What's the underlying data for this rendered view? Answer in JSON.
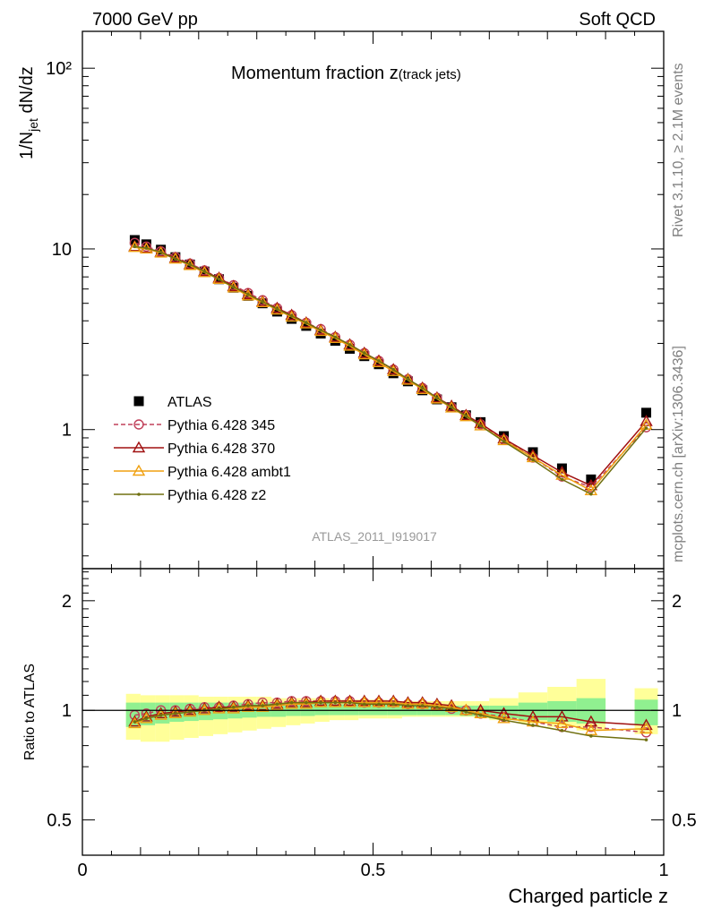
{
  "header": {
    "left": "7000 GeV pp",
    "right": "Soft QCD"
  },
  "side": {
    "rivet": "Rivet 3.1.10, ≥ 2.1M events",
    "mcplots": "mcplots.cern.ch [arXiv:1306.3436]"
  },
  "chart_data": [
    {
      "type": "scatter",
      "title": "Momentum fraction z(track jets)",
      "ylabel": "1/Njet dN/dz",
      "xlabel": "",
      "y_scale": "log",
      "xlim": [
        0,
        1
      ],
      "ylim": [
        0.17,
        160
      ],
      "y_tick_labels": [
        "1",
        "10",
        "10²"
      ],
      "watermark": "ATLAS_2011_I919017",
      "legend_position": "lower-left",
      "x": [
        0.09,
        0.11,
        0.135,
        0.16,
        0.185,
        0.21,
        0.235,
        0.26,
        0.285,
        0.31,
        0.335,
        0.36,
        0.385,
        0.41,
        0.435,
        0.46,
        0.485,
        0.51,
        0.535,
        0.56,
        0.585,
        0.61,
        0.635,
        0.66,
        0.685,
        0.725,
        0.775,
        0.825,
        0.875,
        0.97
      ],
      "series": [
        {
          "name": "ATLAS",
          "color": "#000000",
          "marker": "filled-square",
          "values": [
            11.2,
            10.6,
            9.9,
            9.0,
            8.2,
            7.5,
            6.8,
            6.1,
            5.5,
            5.0,
            4.5,
            4.1,
            3.75,
            3.4,
            3.1,
            2.8,
            2.55,
            2.3,
            2.05,
            1.85,
            1.65,
            1.47,
            1.33,
            1.2,
            1.1,
            0.92,
            0.75,
            0.61,
            0.53,
            1.24
          ]
        },
        {
          "name": "Pythia 6.428 345",
          "color": "#c0405a",
          "marker": "open-circle",
          "dashed": true,
          "values": [
            10.8,
            10.3,
            9.7,
            9.0,
            8.3,
            7.6,
            6.9,
            6.3,
            5.7,
            5.2,
            4.7,
            4.3,
            3.9,
            3.6,
            3.25,
            2.95,
            2.65,
            2.4,
            2.15,
            1.9,
            1.7,
            1.5,
            1.33,
            1.2,
            1.07,
            0.88,
            0.7,
            0.55,
            0.48,
            1.03
          ]
        },
        {
          "name": "Pythia 6.428 370",
          "color": "#a01010",
          "marker": "open-triangle",
          "values": [
            10.3,
            10.1,
            9.6,
            8.9,
            8.2,
            7.5,
            6.9,
            6.2,
            5.6,
            5.1,
            4.7,
            4.3,
            3.9,
            3.55,
            3.25,
            2.95,
            2.65,
            2.4,
            2.15,
            1.9,
            1.7,
            1.5,
            1.35,
            1.2,
            1.08,
            0.89,
            0.72,
            0.58,
            0.49,
            1.11
          ]
        },
        {
          "name": "Pythia 6.428 ambt1",
          "color": "#f0a010",
          "marker": "open-triangle",
          "values": [
            10.2,
            10.0,
            9.5,
            8.8,
            8.1,
            7.4,
            6.8,
            6.1,
            5.5,
            5.05,
            4.6,
            4.2,
            3.85,
            3.5,
            3.2,
            2.9,
            2.6,
            2.35,
            2.1,
            1.88,
            1.67,
            1.48,
            1.32,
            1.18,
            1.05,
            0.87,
            0.7,
            0.56,
            0.46,
            1.06
          ]
        },
        {
          "name": "Pythia 6.428 z2",
          "color": "#707010",
          "marker": "small-dot",
          "values": [
            10.3,
            10.1,
            9.6,
            8.8,
            8.2,
            7.5,
            6.8,
            6.15,
            5.6,
            5.1,
            4.65,
            4.25,
            3.9,
            3.55,
            3.25,
            2.95,
            2.65,
            2.4,
            2.15,
            1.9,
            1.7,
            1.5,
            1.33,
            1.19,
            1.05,
            0.86,
            0.68,
            0.53,
            0.44,
            1.02
          ]
        }
      ]
    },
    {
      "type": "line",
      "title": "",
      "xlabel": "Charged particle z",
      "ylabel": "Ratio to ATLAS",
      "xlim": [
        0,
        1
      ],
      "ylim": [
        0.4,
        2.45
      ],
      "y_scale": "log",
      "y_tick_labels": [
        "0.5",
        "1",
        "2"
      ],
      "x_tick_labels": [
        "0",
        "0.5",
        "1"
      ],
      "reference_line": 1,
      "x": [
        0.09,
        0.11,
        0.135,
        0.16,
        0.185,
        0.21,
        0.235,
        0.26,
        0.285,
        0.31,
        0.335,
        0.36,
        0.385,
        0.41,
        0.435,
        0.46,
        0.485,
        0.51,
        0.535,
        0.56,
        0.585,
        0.61,
        0.635,
        0.66,
        0.685,
        0.725,
        0.775,
        0.825,
        0.875,
        0.97
      ],
      "bands": {
        "edges": [
          0.075,
          0.1,
          0.125,
          0.15,
          0.175,
          0.2,
          0.225,
          0.25,
          0.275,
          0.3,
          0.325,
          0.35,
          0.375,
          0.4,
          0.425,
          0.45,
          0.475,
          0.5,
          0.525,
          0.55,
          0.575,
          0.6,
          0.625,
          0.65,
          0.675,
          0.7,
          0.75,
          0.8,
          0.85,
          0.9,
          0.95,
          0.99
        ],
        "stat": {
          "color": "#90f090",
          "low": [
            0.9,
            0.91,
            0.92,
            0.93,
            0.935,
            0.94,
            0.945,
            0.95,
            0.955,
            0.96,
            0.96,
            0.965,
            0.965,
            0.97,
            0.97,
            0.97,
            0.97,
            0.97,
            0.97,
            0.97,
            0.97,
            0.97,
            0.97,
            0.965,
            0.96,
            0.95,
            0.94,
            0.93,
            0.92,
            null,
            0.91
          ],
          "high": [
            1.05,
            1.05,
            1.05,
            1.05,
            1.05,
            1.05,
            1.05,
            1.05,
            1.05,
            1.05,
            1.05,
            1.05,
            1.05,
            1.05,
            1.04,
            1.04,
            1.04,
            1.04,
            1.04,
            1.04,
            1.03,
            1.03,
            1.03,
            1.03,
            1.03,
            1.03,
            1.05,
            1.06,
            1.08,
            null,
            1.07
          ]
        },
        "total": {
          "color": "#ffff99",
          "low": [
            0.83,
            0.82,
            0.82,
            0.83,
            0.84,
            0.85,
            0.86,
            0.87,
            0.88,
            0.89,
            0.9,
            0.91,
            0.92,
            0.93,
            0.94,
            0.94,
            0.95,
            0.95,
            0.95,
            0.96,
            0.96,
            0.96,
            0.96,
            0.96,
            0.95,
            0.94,
            0.92,
            0.9,
            0.88,
            null,
            0.86
          ],
          "high": [
            1.11,
            1.1,
            1.1,
            1.1,
            1.1,
            1.09,
            1.09,
            1.09,
            1.09,
            1.09,
            1.08,
            1.08,
            1.08,
            1.08,
            1.07,
            1.07,
            1.07,
            1.07,
            1.06,
            1.06,
            1.06,
            1.06,
            1.06,
            1.06,
            1.06,
            1.08,
            1.12,
            1.16,
            1.22,
            null,
            1.15
          ]
        }
      },
      "series": [
        {
          "name": "Pythia 6.428 345",
          "color": "#c0405a",
          "marker": "open-circle",
          "dashed": true,
          "values": [
            0.97,
            0.98,
            1.0,
            1.0,
            1.01,
            1.02,
            1.02,
            1.03,
            1.04,
            1.05,
            1.05,
            1.06,
            1.06,
            1.06,
            1.06,
            1.06,
            1.05,
            1.05,
            1.05,
            1.04,
            1.04,
            1.03,
            1.01,
            1.0,
            0.98,
            0.96,
            0.93,
            0.9,
            0.9,
            0.87
          ]
        },
        {
          "name": "Pythia 6.428 370",
          "color": "#a01010",
          "marker": "open-triangle",
          "values": [
            0.93,
            0.96,
            0.98,
            0.99,
            1.0,
            1.01,
            1.02,
            1.02,
            1.03,
            1.03,
            1.04,
            1.05,
            1.05,
            1.06,
            1.06,
            1.06,
            1.06,
            1.06,
            1.06,
            1.05,
            1.05,
            1.04,
            1.03,
            1.0,
            1.0,
            0.98,
            0.96,
            0.96,
            0.93,
            0.91
          ]
        },
        {
          "name": "Pythia 6.428 ambt1",
          "color": "#f0a010",
          "marker": "open-triangle",
          "values": [
            0.92,
            0.95,
            0.97,
            0.98,
            0.99,
            1.0,
            1.01,
            1.01,
            1.02,
            1.02,
            1.03,
            1.04,
            1.04,
            1.05,
            1.05,
            1.05,
            1.05,
            1.05,
            1.05,
            1.04,
            1.04,
            1.03,
            1.02,
            1.0,
            0.98,
            0.95,
            0.93,
            0.92,
            0.88,
            0.89
          ]
        },
        {
          "name": "Pythia 6.428 z2",
          "color": "#707010",
          "marker": "small-dot",
          "values": [
            0.93,
            0.95,
            0.97,
            0.98,
            0.99,
            1.0,
            1.01,
            1.02,
            1.03,
            1.03,
            1.04,
            1.05,
            1.05,
            1.05,
            1.05,
            1.05,
            1.04,
            1.04,
            1.04,
            1.03,
            1.03,
            1.02,
            1.01,
            0.99,
            0.97,
            0.94,
            0.91,
            0.88,
            0.85,
            0.83
          ]
        }
      ]
    }
  ]
}
